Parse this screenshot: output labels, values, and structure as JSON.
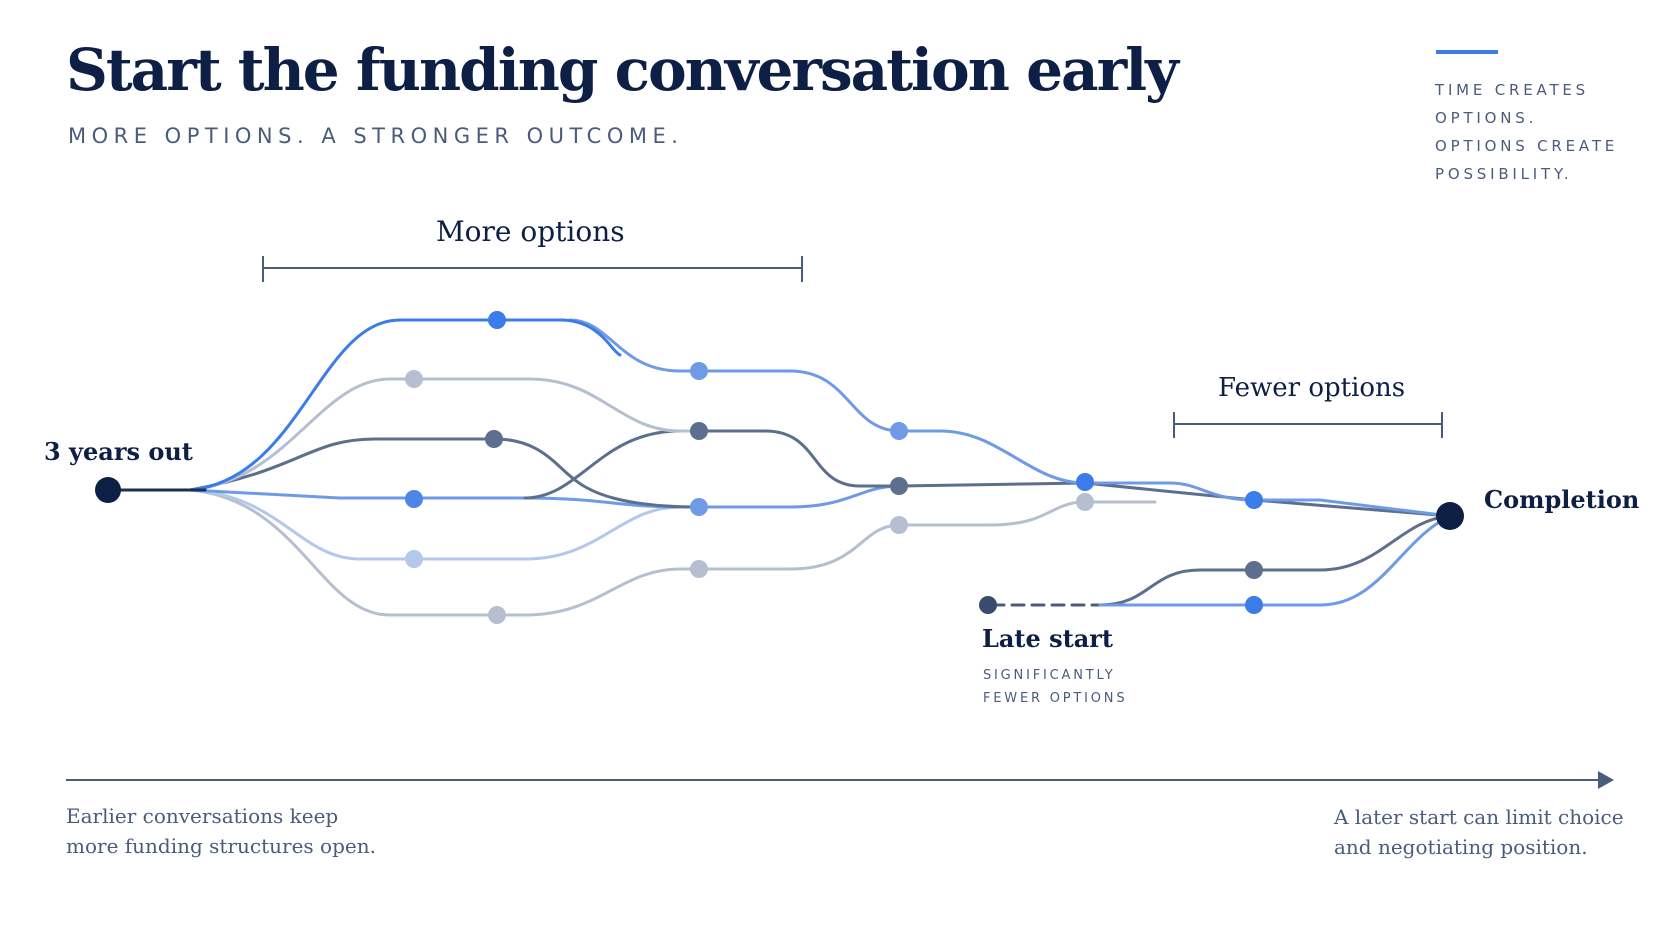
{
  "header": {
    "title": "Start the funding conversation early",
    "subtitle": "MORE OPTIONS. A STRONGER OUTCOME."
  },
  "tagline": {
    "lines": [
      "TIME CREATES",
      "OPTIONS.",
      "OPTIONS CREATE",
      "POSSIBILITY."
    ]
  },
  "diagram": {
    "start_label": "3 years out",
    "end_label": "Completion",
    "more_options_label": "More options",
    "fewer_options_label": "Fewer options",
    "late_start_label": "Late start",
    "late_start_sub": [
      "SIGNIFICANTLY",
      "FEWER OPTIONS"
    ]
  },
  "footer": {
    "left": [
      "Earlier conversations keep",
      "more funding structures open."
    ],
    "right": [
      "A later start can limit choice",
      " and negotiating position."
    ]
  },
  "colors": {
    "navy": "#0d1f45",
    "accent_blue": "#3b7bea",
    "mid_blue": "#6f9be6",
    "slate": "#5c6f8e",
    "light_gray": "#b5bfd0",
    "pale_blue": "#b4c8ec"
  }
}
